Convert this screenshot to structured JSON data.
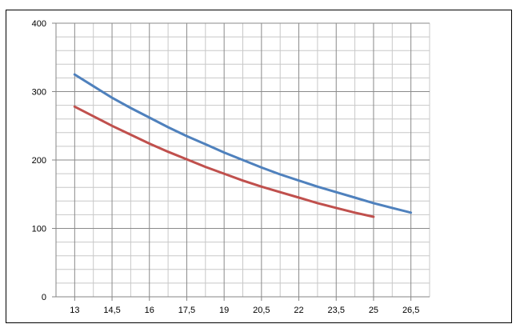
{
  "chart_data": {
    "type": "line",
    "title": "",
    "xlabel": "",
    "ylabel": "",
    "x_ticks": [
      "13",
      "14,5",
      "16",
      "17,5",
      "19",
      "20,5",
      "22",
      "23,5",
      "25",
      "26,5"
    ],
    "y_ticks": [
      "0",
      "100",
      "200",
      "300",
      "400"
    ],
    "xlim": [
      12.25,
      27.25
    ],
    "ylim": [
      0,
      400
    ],
    "grid": true,
    "legend": "none",
    "series": [
      {
        "color": "#4F81BD",
        "x": [
          13,
          13.75,
          14.5,
          15.25,
          16,
          16.75,
          17.5,
          18.25,
          19,
          19.75,
          20.5,
          21.25,
          22,
          22.75,
          23.5,
          24.25,
          25,
          25.75,
          26.5
        ],
        "y": [
          325,
          308,
          291,
          276,
          262,
          248,
          235,
          223,
          211,
          200,
          189,
          179,
          170,
          161,
          153,
          145,
          137,
          130,
          123
        ]
      },
      {
        "color": "#C0504D",
        "x": [
          13,
          13.75,
          14.5,
          15.25,
          16,
          16.75,
          17.5,
          18.25,
          19,
          19.75,
          20.5,
          21.25,
          22,
          22.75,
          23.5,
          24.25,
          25
        ],
        "y": [
          278,
          264,
          250,
          237,
          224,
          212,
          201,
          190,
          180,
          170,
          161,
          153,
          145,
          137,
          130,
          123,
          117
        ]
      }
    ]
  }
}
